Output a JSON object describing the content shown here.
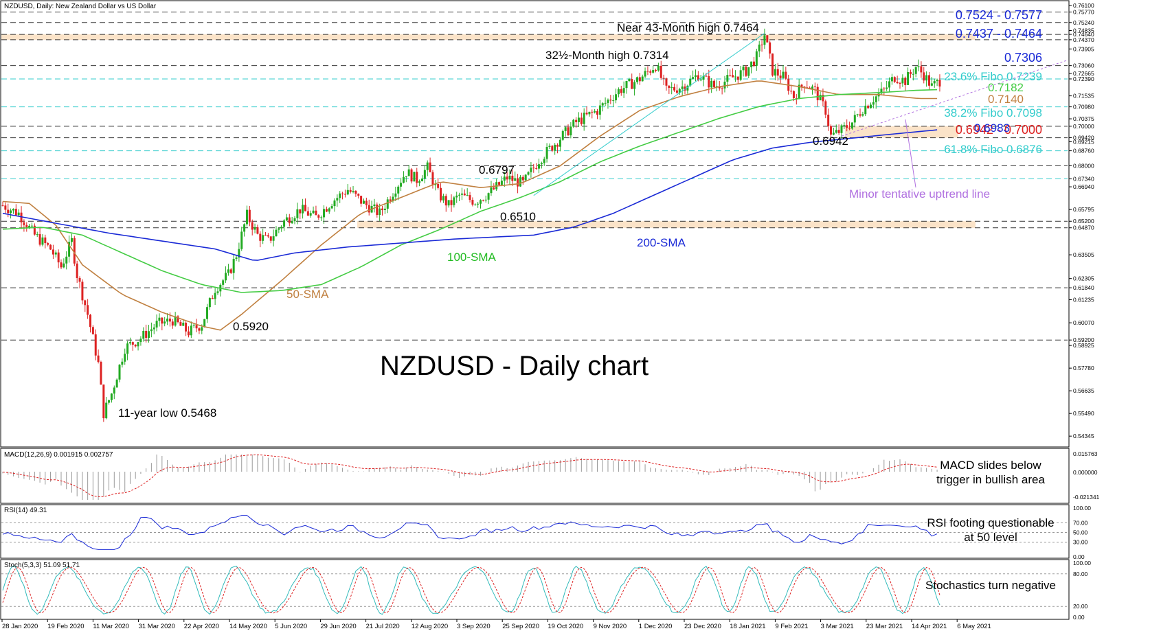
{
  "chart_data": [
    {
      "type": "candlestick",
      "symbol_header": "NZDUSD, Daily:  New Zealand Dollar vs US Dollar",
      "title": "NZDUSD - Daily chart",
      "ylim": [
        0.539,
        0.761
      ],
      "x_dates": [
        "28 Jan 2020",
        "19 Feb 2020",
        "11 Mar 2020",
        "31 Mar 2020",
        "22 Apr 2020",
        "14 May 2020",
        "5 Jun 2020",
        "29 Jun 2020",
        "21 Jul 2020",
        "12 Aug 2020",
        "3 Sep 2020",
        "25 Sep 2020",
        "19 Oct 2020",
        "9 Nov 2020",
        "1 Dec 2020",
        "23 Dec 2020",
        "18 Jan 2021",
        "9 Feb 2021",
        "3 Mar 2021",
        "23 Mar 2021",
        "14 Apr 2021",
        "6 May 2021"
      ],
      "y_ticks": [
        "0.76100",
        "0.75770",
        "0.75240",
        "0.74835",
        "0.74640",
        "0.74370",
        "0.73905",
        "0.73060",
        "0.72665",
        "0.72390",
        "0.71535",
        "0.70980",
        "0.70375",
        "0.70000",
        "0.69420",
        "0.69215",
        "0.68760",
        "0.68000",
        "0.67340",
        "0.66940",
        "0.65795",
        "0.65200",
        "0.64870",
        "0.63505",
        "0.62305",
        "0.61840",
        "0.61235",
        "0.60070",
        "0.59200",
        "0.58925",
        "0.57780",
        "0.56635",
        "0.55490",
        "0.54345"
      ],
      "series_path": [
        [
          0,
          0.66
        ],
        [
          6,
          0.656
        ],
        [
          12,
          0.645
        ],
        [
          18,
          0.638
        ],
        [
          22,
          0.629
        ],
        [
          26,
          0.642
        ],
        [
          28,
          0.625
        ],
        [
          32,
          0.605
        ],
        [
          36,
          0.58
        ],
        [
          38,
          0.555
        ],
        [
          41,
          0.565
        ],
        [
          46,
          0.588
        ],
        [
          52,
          0.593
        ],
        [
          58,
          0.6
        ],
        [
          64,
          0.602
        ],
        [
          70,
          0.596
        ],
        [
          75,
          0.6
        ],
        [
          80,
          0.618
        ],
        [
          85,
          0.625
        ],
        [
          88,
          0.635
        ],
        [
          92,
          0.655
        ],
        [
          96,
          0.645
        ],
        [
          100,
          0.642
        ],
        [
          106,
          0.652
        ],
        [
          112,
          0.658
        ],
        [
          118,
          0.654
        ],
        [
          124,
          0.662
        ],
        [
          130,
          0.668
        ],
        [
          136,
          0.661
        ],
        [
          142,
          0.656
        ],
        [
          148,
          0.669
        ],
        [
          152,
          0.677
        ],
        [
          156,
          0.673
        ],
        [
          160,
          0.679
        ],
        [
          164,
          0.666
        ],
        [
          168,
          0.66
        ],
        [
          172,
          0.665
        ],
        [
          178,
          0.662
        ],
        [
          184,
          0.667
        ],
        [
          190,
          0.674
        ],
        [
          196,
          0.671
        ],
        [
          202,
          0.683
        ],
        [
          210,
          0.694
        ],
        [
          216,
          0.702
        ],
        [
          224,
          0.708
        ],
        [
          232,
          0.718
        ],
        [
          240,
          0.724
        ],
        [
          246,
          0.731
        ],
        [
          250,
          0.718
        ],
        [
          256,
          0.72
        ],
        [
          262,
          0.726
        ],
        [
          268,
          0.72
        ],
        [
          274,
          0.724
        ],
        [
          280,
          0.728
        ],
        [
          284,
          0.735
        ],
        [
          287,
          0.7464
        ],
        [
          290,
          0.728
        ],
        [
          294,
          0.725
        ],
        [
          298,
          0.715
        ],
        [
          302,
          0.722
        ],
        [
          306,
          0.718
        ],
        [
          310,
          0.708
        ],
        [
          312,
          0.695
        ],
        [
          316,
          0.698
        ],
        [
          320,
          0.702
        ],
        [
          324,
          0.709
        ],
        [
          328,
          0.714
        ],
        [
          332,
          0.718
        ],
        [
          336,
          0.725
        ],
        [
          340,
          0.723
        ],
        [
          344,
          0.73
        ],
        [
          347,
          0.726
        ],
        [
          350,
          0.72
        ],
        [
          353,
          0.723
        ]
      ],
      "sma": [
        {
          "name": "50-SMA",
          "color": "#c08040",
          "points": [
            [
              0,
              0.662
            ],
            [
              10,
              0.661
            ],
            [
              20,
              0.65
            ],
            [
              30,
              0.63
            ],
            [
              45,
              0.615
            ],
            [
              60,
              0.606
            ],
            [
              75,
              0.599
            ],
            [
              82,
              0.597
            ],
            [
              90,
              0.605
            ],
            [
              105,
              0.622
            ],
            [
              120,
              0.64
            ],
            [
              135,
              0.656
            ],
            [
              150,
              0.664
            ],
            [
              165,
              0.672
            ],
            [
              180,
              0.669
            ],
            [
              195,
              0.671
            ],
            [
              210,
              0.68
            ],
            [
              225,
              0.695
            ],
            [
              240,
              0.708
            ],
            [
              255,
              0.715
            ],
            [
              270,
              0.72
            ],
            [
              285,
              0.723
            ],
            [
              300,
              0.72
            ],
            [
              315,
              0.716
            ],
            [
              330,
              0.716
            ],
            [
              345,
              0.714
            ],
            [
              353,
              0.714
            ]
          ]
        },
        {
          "name": "100-SMA",
          "color": "#44cc44",
          "points": [
            [
              0,
              0.648
            ],
            [
              15,
              0.649
            ],
            [
              30,
              0.645
            ],
            [
              45,
              0.636
            ],
            [
              60,
              0.627
            ],
            [
              75,
              0.62
            ],
            [
              90,
              0.616
            ],
            [
              105,
              0.617
            ],
            [
              120,
              0.62
            ],
            [
              135,
              0.629
            ],
            [
              150,
              0.64
            ],
            [
              165,
              0.648
            ],
            [
              180,
              0.657
            ],
            [
              195,
              0.664
            ],
            [
              210,
              0.672
            ],
            [
              225,
              0.682
            ],
            [
              240,
              0.69
            ],
            [
              255,
              0.697
            ],
            [
              270,
              0.704
            ],
            [
              285,
              0.71
            ],
            [
              300,
              0.714
            ],
            [
              315,
              0.716
            ],
            [
              330,
              0.717
            ],
            [
              345,
              0.7182
            ],
            [
              353,
              0.7185
            ]
          ]
        },
        {
          "name": "200-SMA",
          "color": "#1a2ad6",
          "points": [
            [
              0,
              0.656
            ],
            [
              20,
              0.651
            ],
            [
              40,
              0.646
            ],
            [
              60,
              0.642
            ],
            [
              80,
              0.638
            ],
            [
              95,
              0.632
            ],
            [
              110,
              0.636
            ],
            [
              130,
              0.639
            ],
            [
              150,
              0.641
            ],
            [
              170,
              0.643
            ],
            [
              185,
              0.644
            ],
            [
              200,
              0.645
            ],
            [
              215,
              0.649
            ],
            [
              230,
              0.656
            ],
            [
              245,
              0.665
            ],
            [
              260,
              0.674
            ],
            [
              275,
              0.683
            ],
            [
              290,
              0.689
            ],
            [
              305,
              0.692
            ],
            [
              320,
              0.694
            ],
            [
              335,
              0.696
            ],
            [
              353,
              0.6983
            ]
          ]
        }
      ],
      "levels": [
        {
          "value": 0.7577,
          "label": "",
          "style": "dashed",
          "color": "#333333"
        },
        {
          "value": 0.7524,
          "label": "",
          "style": "dashed",
          "color": "#333333"
        },
        {
          "value": 0.7464,
          "label": "",
          "style": "dashed",
          "color": "#333333"
        },
        {
          "value": 0.7437,
          "label": "",
          "style": "dashed",
          "color": "#333333"
        },
        {
          "value": 0.7306,
          "label": "",
          "style": "dashed",
          "color": "#333333"
        },
        {
          "value": 0.7239,
          "label": "",
          "style": "dashed",
          "color": "#33cccc"
        },
        {
          "value": 0.7098,
          "label": "",
          "style": "dashed",
          "color": "#33cccc"
        },
        {
          "value": 0.7,
          "label": "",
          "style": "dashed",
          "color": "#333333"
        },
        {
          "value": 0.6942,
          "label": "",
          "style": "dashed",
          "color": "#333333"
        },
        {
          "value": 0.6876,
          "label": "",
          "style": "dashed",
          "color": "#33cccc"
        },
        {
          "value": 0.68,
          "label": "",
          "style": "dashed",
          "color": "#333333"
        },
        {
          "value": 0.6734,
          "label": "",
          "style": "dashed",
          "color": "#33cccc"
        },
        {
          "value": 0.652,
          "label": "",
          "style": "dashed",
          "color": "#333333"
        },
        {
          "value": 0.6487,
          "label": "",
          "style": "dashed",
          "color": "#333333"
        },
        {
          "value": 0.6184,
          "label": "",
          "style": "dashed",
          "color": "#333333"
        },
        {
          "value": 0.592,
          "label": "",
          "style": "dashed",
          "color": "#333333"
        }
      ],
      "zones": [
        {
          "from": 0.7437,
          "to": 0.7464
        },
        {
          "from": 0.6942,
          "to": 0.7
        },
        {
          "from": 0.6487,
          "to": 0.652
        }
      ],
      "annotations": {
        "near_high": "Near 43-Month high 0.7464",
        "month_high": "32½-Month high 0.7314",
        "low_11yr": "11-year low 0.5468",
        "lbl_0797": "0.6797",
        "lbl_0510": "0.6510",
        "lbl_0920": "0.5920",
        "lbl_0942": "0.6942",
        "sma50": "50-SMA",
        "sma100": "100-SMA",
        "sma200": "200-SMA",
        "uptrend": "Minor tentative uptrend line",
        "r1": "0.7524 - 0.7577",
        "r2": "0.7437 - 0.7464",
        "r3": "0.7306",
        "fibo236": "23.6% Fibo 0.7239",
        "v7182": "0.7182",
        "v7140": "0.7140",
        "fibo382": "38.2% Fibo 0.7098",
        "zone": "0.6942 - 0.7000",
        "v6983": "0.6983",
        "fibo618": "61.8% Fibo 0.6876"
      },
      "colors": {
        "bull": "#22aa22",
        "bear": "#dd2222",
        "fibo": "#33cccc",
        "resist": "#1a2ad6",
        "zone_fill": "#fbe3c8",
        "trend": "#b070e0"
      }
    },
    {
      "type": "histogram",
      "header": "MACD(12,26,9) 0.001915 0.002757",
      "comment_line1": "MACD slides below",
      "comment_line2": "trigger in bullish area",
      "y_ticks": [
        "0.015763",
        "0.000000",
        "-0.021341"
      ]
    },
    {
      "type": "line",
      "header": "RSI(14) 49.31",
      "comment_line1": "RSI footing questionable",
      "comment_line2": "at 50 level",
      "y_ticks": [
        "100.00",
        "70.00",
        "50.00",
        "30.00",
        "0.00"
      ]
    },
    {
      "type": "line",
      "header": "Stoch(5,3,3) 51.09 51.71",
      "comment_line1": "Stochastics turn negative",
      "y_ticks": [
        "100.00",
        "80.00",
        "20.00",
        "0.00"
      ]
    }
  ]
}
